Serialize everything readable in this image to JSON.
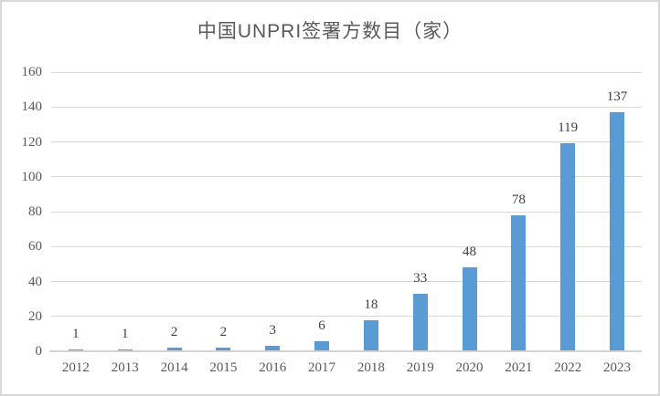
{
  "chart_data": {
    "type": "bar",
    "title": "中国UNPRI签署方数目（家）",
    "categories": [
      "2012",
      "2013",
      "2014",
      "2015",
      "2016",
      "2017",
      "2018",
      "2019",
      "2020",
      "2021",
      "2022",
      "2023"
    ],
    "values": [
      1,
      1,
      2,
      2,
      3,
      6,
      18,
      33,
      48,
      78,
      119,
      137
    ],
    "data_labels_shown": true,
    "xlabel": "",
    "ylabel": "",
    "ylim": [
      0,
      160
    ],
    "y_ticks": [
      0,
      20,
      40,
      60,
      80,
      100,
      120,
      140,
      160
    ],
    "grid": "horizontal",
    "legend": "none",
    "colors": {
      "bar": "#5b9bd5",
      "gridline": "#d9d9d9",
      "axis_line": "#d2d2d2",
      "axis_text": "#595959",
      "data_label_text": "#404040",
      "title_text": "#595959",
      "frame_border": "#d9d9d9",
      "background": "#ffffff"
    }
  }
}
